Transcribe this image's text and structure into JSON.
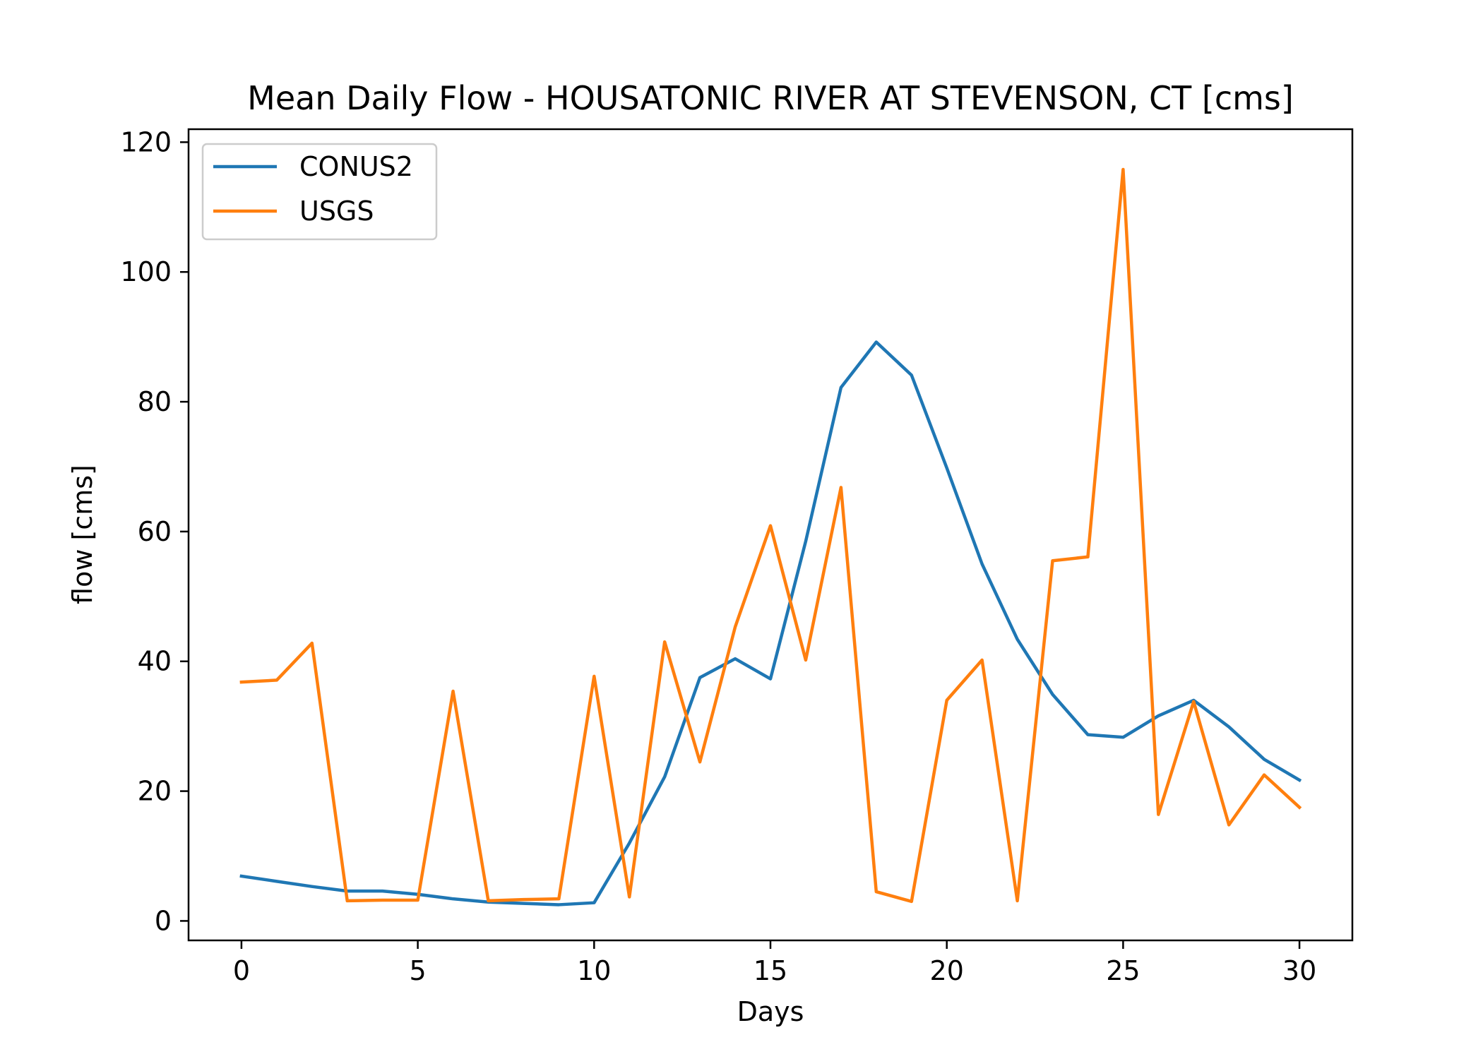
{
  "chart_data": {
    "type": "line",
    "title": "Mean Daily Flow - HOUSATONIC RIVER AT STEVENSON, CT [cms]",
    "xlabel": "Days",
    "ylabel": "flow [cms]",
    "xlim": [
      -1.5,
      31.5
    ],
    "ylim": [
      -3,
      122
    ],
    "x_ticks": [
      0,
      5,
      10,
      15,
      20,
      25,
      30
    ],
    "y_ticks": [
      0,
      20,
      40,
      60,
      80,
      100,
      120
    ],
    "grid": false,
    "legend_position": "top-left",
    "x": [
      0,
      1,
      2,
      3,
      4,
      5,
      6,
      7,
      8,
      9,
      10,
      11,
      12,
      13,
      14,
      15,
      16,
      17,
      18,
      19,
      20,
      21,
      22,
      23,
      24,
      25,
      26,
      27,
      28,
      29,
      30
    ],
    "series": [
      {
        "name": "CONUS2",
        "color": "#1f77b4",
        "values": [
          6.9,
          6.1,
          5.3,
          4.6,
          4.6,
          4.1,
          3.4,
          2.9,
          2.7,
          2.5,
          2.8,
          12.0,
          22.2,
          37.5,
          40.4,
          37.3,
          58.5,
          82.2,
          89.2,
          84.1,
          69.8,
          55.0,
          43.4,
          34.9,
          28.7,
          28.3,
          31.6,
          34.0,
          29.9,
          24.9,
          21.7
        ]
      },
      {
        "name": "USGS",
        "color": "#ff7f0e",
        "values": [
          36.8,
          37.1,
          42.8,
          3.1,
          3.2,
          3.2,
          35.4,
          3.1,
          3.3,
          3.4,
          37.7,
          3.7,
          43.0,
          24.5,
          45.3,
          60.9,
          40.2,
          66.8,
          4.5,
          3.0,
          34.0,
          40.2,
          3.1,
          55.5,
          56.1,
          115.8,
          16.4,
          33.8,
          14.8,
          22.5,
          17.5
        ]
      }
    ]
  }
}
